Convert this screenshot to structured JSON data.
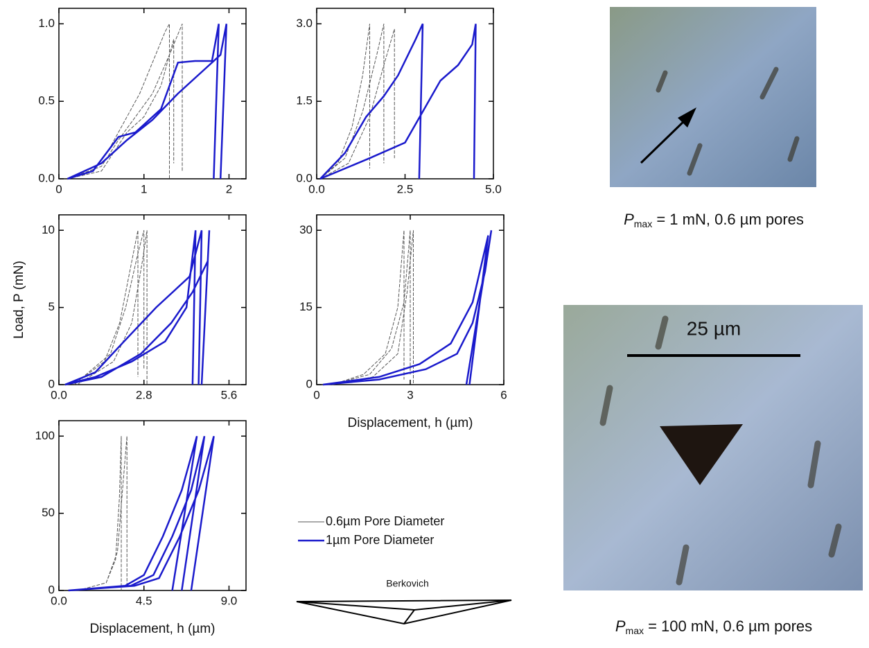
{
  "chart_data": [
    {
      "type": "line",
      "xlim": [
        0,
        2.2
      ],
      "ylim": [
        0,
        1.1
      ],
      "xticks": [
        0,
        1,
        2
      ],
      "yticks": [
        {
          "value": 0,
          "label": "0.0"
        },
        {
          "value": 0.5,
          "label": "0.5"
        },
        {
          "value": 1,
          "label": "1.0"
        }
      ],
      "series": [
        {
          "color": "#555555",
          "x": [
            0.1,
            0.4,
            0.6,
            0.8,
            0.95,
            1.1,
            1.25,
            1.3,
            1.3,
            null,
            0.1,
            0.5,
            0.7,
            0.9,
            1.1,
            1.3,
            1.45,
            1.45,
            null,
            0.1,
            0.5,
            0.8,
            1.0,
            1.2,
            1.35,
            1.35
          ],
          "values": [
            0,
            0.05,
            0.2,
            0.4,
            0.55,
            0.75,
            0.95,
            1.0,
            0,
            null,
            0,
            0.08,
            0.25,
            0.4,
            0.55,
            0.8,
            1.0,
            0.05,
            null,
            0,
            0.05,
            0.3,
            0.4,
            0.6,
            0.9,
            0.1
          ]
        },
        {
          "color": "#1a1acc",
          "x": [
            0.1,
            0.4,
            0.7,
            0.9,
            1.2,
            1.4,
            1.6,
            1.8,
            1.88,
            1.82,
            null,
            0.1,
            0.5,
            0.8,
            1.1,
            1.4,
            1.7,
            1.9,
            1.97,
            1.9
          ],
          "values": [
            0,
            0.05,
            0.27,
            0.3,
            0.45,
            0.75,
            0.76,
            0.76,
            1.0,
            0,
            null,
            0,
            0.1,
            0.25,
            0.38,
            0.55,
            0.7,
            0.8,
            1.0,
            0
          ]
        }
      ]
    },
    {
      "type": "line",
      "xlim": [
        0,
        5
      ],
      "ylim": [
        0,
        3.3
      ],
      "xticks": [
        {
          "value": 0,
          "label": "0.0"
        },
        2.5,
        {
          "value": 5,
          "label": "5.0"
        }
      ],
      "yticks": [
        {
          "value": 0,
          "label": "0.0"
        },
        1.5,
        {
          "value": 3,
          "label": "3.0"
        }
      ],
      "series": [
        {
          "color": "#555555",
          "x": [
            0.1,
            0.6,
            1.0,
            1.3,
            1.5,
            1.5,
            null,
            0.1,
            0.8,
            1.3,
            1.7,
            1.9,
            1.9,
            null,
            0.1,
            0.9,
            1.5,
            1.9,
            2.2,
            2.2
          ],
          "values": [
            0,
            0.3,
            1.0,
            2.0,
            3.0,
            0.2,
            null,
            0,
            0.4,
            1.3,
            2.4,
            3.0,
            0.3,
            null,
            0,
            0.3,
            1.2,
            2.2,
            2.9,
            0.4
          ]
        },
        {
          "color": "#1a1acc",
          "x": [
            0.1,
            0.8,
            1.4,
            1.9,
            2.3,
            2.8,
            3.0,
            2.9,
            null,
            0.1,
            0.8,
            1.5,
            2.5,
            3.0,
            3.5,
            4.0,
            4.4,
            4.5,
            4.45
          ],
          "values": [
            0,
            0.5,
            1.2,
            1.6,
            2.0,
            2.7,
            3.0,
            0,
            null,
            0,
            0.2,
            0.4,
            0.7,
            1.3,
            1.9,
            2.2,
            2.6,
            3.0,
            0
          ]
        }
      ]
    },
    {
      "type": "line",
      "ylabel": "Load, P (mN)",
      "xlim": [
        0,
        6.16
      ],
      "ylim": [
        0,
        11
      ],
      "xticks": [
        {
          "value": 0,
          "label": "0.0"
        },
        2.8,
        5.6
      ],
      "yticks": [
        0,
        5,
        10
      ],
      "series": [
        {
          "color": "#555555",
          "x": [
            0.5,
            1.5,
            2.0,
            2.4,
            2.6,
            2.6,
            null,
            0.5,
            1.7,
            2.2,
            2.6,
            2.8,
            2.8,
            null,
            0.6,
            1.8,
            2.4,
            2.75,
            2.9,
            2.9
          ],
          "values": [
            0,
            1.5,
            4,
            8,
            10,
            0.5,
            null,
            0,
            2,
            5,
            8.5,
            10,
            1,
            null,
            0,
            1.5,
            4,
            8,
            10,
            0
          ]
        },
        {
          "color": "#1a1acc",
          "x": [
            0.2,
            1.2,
            2.4,
            3.5,
            4.2,
            4.5,
            4.4,
            null,
            0.2,
            1.4,
            2.7,
            3.7,
            4.4,
            4.9,
            4.95,
            4.7,
            null,
            0.2,
            1.2,
            2.0,
            3.2,
            4.3,
            4.7,
            4.6
          ],
          "values": [
            0,
            0.5,
            1.5,
            2.8,
            5,
            10,
            0,
            null,
            0,
            0.5,
            2,
            4,
            6,
            8,
            10,
            0,
            null,
            0,
            0.8,
            2.5,
            5,
            7,
            10,
            0
          ]
        }
      ]
    },
    {
      "type": "line",
      "xlabel": "Displacement, h (µm)",
      "xlim": [
        0,
        6
      ],
      "ylim": [
        0,
        33
      ],
      "xticks": [
        0,
        3,
        6
      ],
      "yticks": [
        0,
        15,
        30
      ],
      "series": [
        {
          "color": "#555555",
          "x": [
            0.5,
            1.5,
            2.2,
            2.6,
            2.8,
            2.8,
            null,
            0.5,
            1.7,
            2.4,
            2.8,
            3.0,
            3.0,
            null,
            0.5,
            1.8,
            2.6,
            2.9,
            3.1,
            3.1
          ],
          "values": [
            0,
            2,
            6,
            15,
            30,
            1,
            null,
            0,
            2,
            7,
            16,
            30,
            2,
            null,
            0,
            1.5,
            6,
            18,
            30,
            0
          ]
        },
        {
          "color": "#1a1acc",
          "x": [
            0.2,
            2.0,
            3.5,
            4.5,
            5.0,
            5.4,
            5.6,
            4.8,
            null,
            0.2,
            2.0,
            3.3,
            4.3,
            5.0,
            5.5,
            4.9
          ],
          "values": [
            0,
            1,
            3,
            6,
            12,
            22,
            30,
            0,
            null,
            0,
            1.5,
            4,
            8,
            16,
            29,
            0
          ]
        }
      ]
    },
    {
      "type": "line",
      "xlabel": "Displacement, h (µm)",
      "xlim": [
        0,
        9.9
      ],
      "ylim": [
        0,
        110
      ],
      "xticks": [
        {
          "value": 0,
          "label": "0.0"
        },
        4.5,
        {
          "value": 9,
          "label": "9.0"
        }
      ],
      "yticks": [
        0,
        50,
        100
      ],
      "series": [
        {
          "name": "0.6µm Pore Diameter",
          "color": "#555555",
          "x": [
            1,
            2.5,
            3.0,
            3.2,
            3.3,
            3.3,
            null,
            1,
            2.5,
            3.1,
            3.4,
            3.6,
            3.6
          ],
          "values": [
            0,
            5,
            20,
            60,
            100,
            0,
            null,
            0,
            5,
            25,
            70,
            100,
            2
          ]
        },
        {
          "name": "1µm Pore Diameter",
          "color": "#1a1acc",
          "x": [
            0.5,
            3.5,
            4.5,
            5.5,
            6.5,
            7.3,
            6.0,
            null,
            0.5,
            3.8,
            5.0,
            6.0,
            7.0,
            7.7,
            6.5,
            null,
            0.5,
            4.0,
            5.3,
            6.4,
            7.4,
            8.2,
            7.0
          ],
          "values": [
            0,
            3,
            10,
            35,
            65,
            100,
            0,
            null,
            0,
            3,
            10,
            35,
            65,
            100,
            0,
            null,
            0,
            3,
            8,
            35,
            65,
            100,
            0
          ]
        }
      ]
    }
  ],
  "indenter": "Berkovich",
  "images": [
    {
      "caption": {
        "symbol": "P",
        "subscript": "max",
        "text": " = 1 mN, 0.6 µm pores"
      }
    },
    {
      "scale_bar": "25 µm",
      "caption": {
        "symbol": "P",
        "subscript": "max",
        "text": " = 100 mN, 0.6 µm pores"
      }
    }
  ]
}
